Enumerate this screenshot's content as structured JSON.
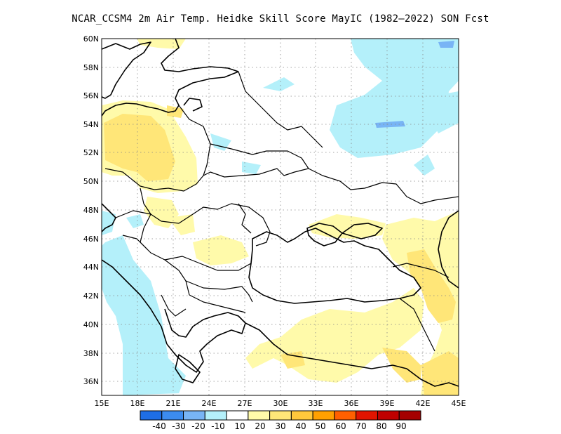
{
  "title": "NCAR_CCSM4  2m Air Temp. Heidke Skill Score MayIC (1982–2022) SON Fcst",
  "map": {
    "lon_range": [
      15,
      45
    ],
    "lat_range": [
      35,
      60
    ],
    "grid": "dotted",
    "y_ticks": [
      "36N",
      "38N",
      "40N",
      "42N",
      "44N",
      "46N",
      "48N",
      "50N",
      "52N",
      "54N",
      "56N",
      "58N",
      "60N"
    ],
    "x_ticks": [
      "15E",
      "18E",
      "21E",
      "24E",
      "27E",
      "30E",
      "33E",
      "36E",
      "39E",
      "42E",
      "45E"
    ]
  },
  "colorbar": {
    "labels": [
      "-40",
      "-30",
      "-20",
      "-10",
      "10",
      "20",
      "30",
      "40",
      "50",
      "60",
      "70",
      "80",
      "90"
    ],
    "colors": [
      "#1e6ee6",
      "#3c8cf0",
      "#78b4f5",
      "#b4f0fa",
      "#ffffff",
      "#fffaaa",
      "#ffe678",
      "#ffc83c",
      "#ffa000",
      "#ff6000",
      "#e11400",
      "#c00000",
      "#a50000"
    ]
  }
}
